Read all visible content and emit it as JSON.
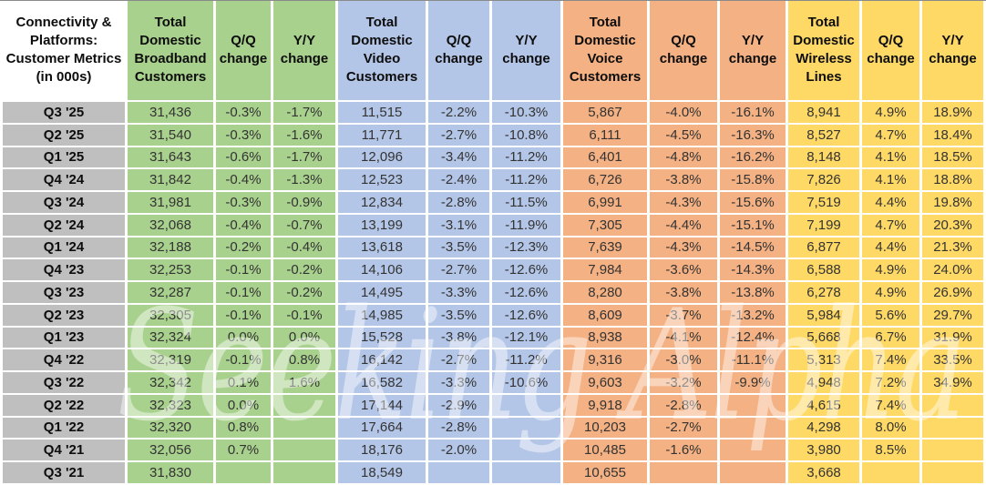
{
  "watermark": "Seeking Alpha",
  "colors": {
    "gray": "#BFBFBF",
    "green": "#A9D18E",
    "blue": "#B4C6E7",
    "orange": "#F4B183",
    "yellow": "#FFD966"
  },
  "chart_data": {
    "type": "table",
    "corner_label": "Connectivity & Platforms: Customer Metrics (in 000s)",
    "sections": [
      {
        "title": "Total Domestic Broadband Customers",
        "qq_label": "Q/Q change",
        "yy_label": "Y/Y change"
      },
      {
        "title": "Total Domestic Video Customers",
        "qq_label": "Q/Q change",
        "yy_label": "Y/Y change"
      },
      {
        "title": "Total Domestic Voice Customers",
        "qq_label": "Q/Q change",
        "yy_label": "Y/Y change"
      },
      {
        "title": "Total Domestic Wireless Lines",
        "qq_label": "Q/Q change",
        "yy_label": "Y/Y change"
      }
    ],
    "rows": [
      {
        "quarter": "Q3 '25",
        "values": [
          "31,436",
          "-0.3%",
          "-1.7%",
          "11,515",
          "-2.2%",
          "-10.3%",
          "5,867",
          "-4.0%",
          "-16.1%",
          "8,941",
          "4.9%",
          "18.9%"
        ]
      },
      {
        "quarter": "Q2 '25",
        "values": [
          "31,540",
          "-0.3%",
          "-1.6%",
          "11,771",
          "-2.7%",
          "-10.8%",
          "6,111",
          "-4.5%",
          "-16.3%",
          "8,527",
          "4.7%",
          "18.4%"
        ]
      },
      {
        "quarter": "Q1 '25",
        "values": [
          "31,643",
          "-0.6%",
          "-1.7%",
          "12,096",
          "-3.4%",
          "-11.2%",
          "6,401",
          "-4.8%",
          "-16.2%",
          "8,148",
          "4.1%",
          "18.5%"
        ]
      },
      {
        "quarter": "Q4 '24",
        "values": [
          "31,842",
          "-0.4%",
          "-1.3%",
          "12,523",
          "-2.4%",
          "-11.2%",
          "6,726",
          "-3.8%",
          "-15.8%",
          "7,826",
          "4.1%",
          "18.8%"
        ]
      },
      {
        "quarter": "Q3 '24",
        "values": [
          "31,981",
          "-0.3%",
          "-0.9%",
          "12,834",
          "-2.8%",
          "-11.5%",
          "6,991",
          "-4.3%",
          "-15.6%",
          "7,519",
          "4.4%",
          "19.8%"
        ]
      },
      {
        "quarter": "Q2 '24",
        "values": [
          "32,068",
          "-0.4%",
          "-0.7%",
          "13,199",
          "-3.1%",
          "-11.9%",
          "7,305",
          "-4.4%",
          "-15.1%",
          "7,199",
          "4.7%",
          "20.3%"
        ]
      },
      {
        "quarter": "Q1 '24",
        "values": [
          "32,188",
          "-0.2%",
          "-0.4%",
          "13,618",
          "-3.5%",
          "-12.3%",
          "7,639",
          "-4.3%",
          "-14.5%",
          "6,877",
          "4.4%",
          "21.3%"
        ]
      },
      {
        "quarter": "Q4 '23",
        "values": [
          "32,253",
          "-0.1%",
          "-0.2%",
          "14,106",
          "-2.7%",
          "-12.6%",
          "7,984",
          "-3.6%",
          "-14.3%",
          "6,588",
          "4.9%",
          "24.0%"
        ]
      },
      {
        "quarter": "Q3 '23",
        "values": [
          "32,287",
          "-0.1%",
          "-0.2%",
          "14,495",
          "-3.3%",
          "-12.6%",
          "8,280",
          "-3.8%",
          "-13.8%",
          "6,278",
          "4.9%",
          "26.9%"
        ]
      },
      {
        "quarter": "Q2 '23",
        "values": [
          "32,305",
          "-0.1%",
          "-0.1%",
          "14,985",
          "-3.5%",
          "-12.6%",
          "8,609",
          "-3.7%",
          "-13.2%",
          "5,984",
          "5.6%",
          "29.7%"
        ]
      },
      {
        "quarter": "Q1 '23",
        "values": [
          "32,324",
          "0.0%",
          "0.0%",
          "15,528",
          "-3.8%",
          "-12.1%",
          "8,938",
          "-4.1%",
          "-12.4%",
          "5,668",
          "6.7%",
          "31.9%"
        ]
      },
      {
        "quarter": "Q4 '22",
        "values": [
          "32,319",
          "-0.1%",
          "0.8%",
          "16,142",
          "-2.7%",
          "-11.2%",
          "9,316",
          "-3.0%",
          "-11.1%",
          "5,313",
          "7.4%",
          "33.5%"
        ]
      },
      {
        "quarter": "Q3 '22",
        "values": [
          "32,342",
          "0.1%",
          "1.6%",
          "16,582",
          "-3.3%",
          "-10.6%",
          "9,603",
          "-3.2%",
          "-9.9%",
          "4,948",
          "7.2%",
          "34.9%"
        ]
      },
      {
        "quarter": "Q2 '22",
        "values": [
          "32,323",
          "0.0%",
          "",
          "17,144",
          "-2.9%",
          "",
          "9,918",
          "-2.8%",
          "",
          "4,615",
          "7.4%",
          ""
        ]
      },
      {
        "quarter": "Q1 '22",
        "values": [
          "32,320",
          "0.8%",
          "",
          "17,664",
          "-2.8%",
          "",
          "10,203",
          "-2.7%",
          "",
          "4,298",
          "8.0%",
          ""
        ]
      },
      {
        "quarter": "Q4 '21",
        "values": [
          "32,056",
          "0.7%",
          "",
          "18,176",
          "-2.0%",
          "",
          "10,485",
          "-1.6%",
          "",
          "3,980",
          "8.5%",
          ""
        ]
      },
      {
        "quarter": "Q3 '21",
        "values": [
          "31,830",
          "",
          "",
          "18,549",
          "",
          "",
          "10,655",
          "",
          "",
          "3,668",
          "",
          ""
        ]
      }
    ]
  }
}
